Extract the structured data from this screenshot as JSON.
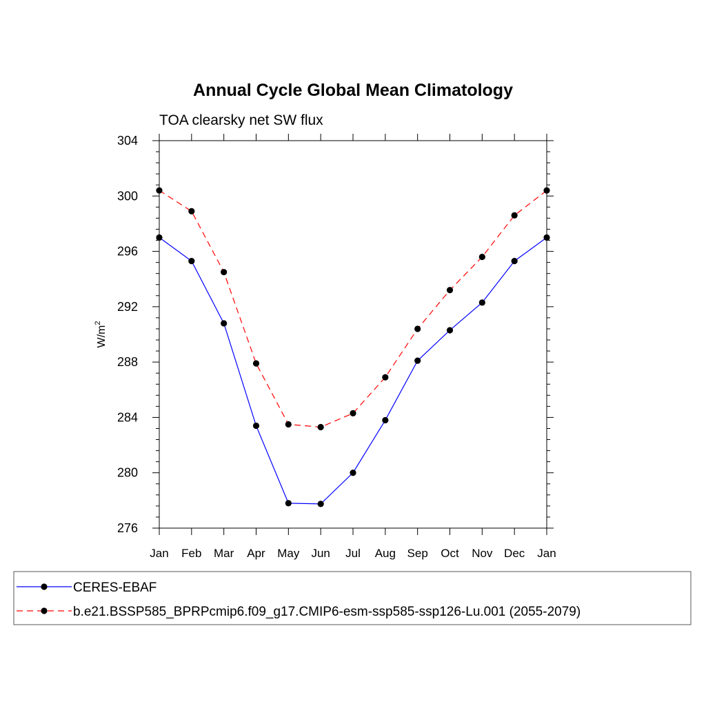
{
  "chart_data": {
    "type": "line",
    "title": "Annual Cycle Global Mean Climatology",
    "subtitle": "TOA clearsky net SW flux",
    "ylabel": "W/m",
    "ylabel_sup": "2",
    "xlabel": "",
    "categories": [
      "Jan",
      "Feb",
      "Mar",
      "Apr",
      "May",
      "Jun",
      "Jul",
      "Aug",
      "Sep",
      "Oct",
      "Nov",
      "Dec",
      "Jan"
    ],
    "ylim": [
      276,
      304
    ],
    "yticks": [
      276,
      280,
      284,
      288,
      292,
      296,
      300,
      304
    ],
    "yticks_minor_step": 0.8,
    "grid": false,
    "legend_position": "bottom",
    "series": [
      {
        "name": "CERES-EBAF",
        "color": "#0000ff",
        "dash": "solid",
        "values": [
          297.0,
          295.3,
          290.8,
          283.4,
          277.8,
          277.75,
          280.0,
          283.8,
          288.1,
          290.3,
          292.3,
          295.3,
          297.0
        ]
      },
      {
        "name": "b.e21.BSSP585_BPRPcmip6.f09_g17.CMIP6-esm-ssp585-ssp126-Lu.001 (2055-2079)",
        "color": "#ff0000",
        "dash": "dashed",
        "values": [
          300.4,
          298.9,
          294.5,
          287.9,
          283.5,
          283.3,
          284.3,
          286.9,
          290.4,
          293.2,
          295.6,
          298.6,
          300.4
        ]
      }
    ]
  }
}
